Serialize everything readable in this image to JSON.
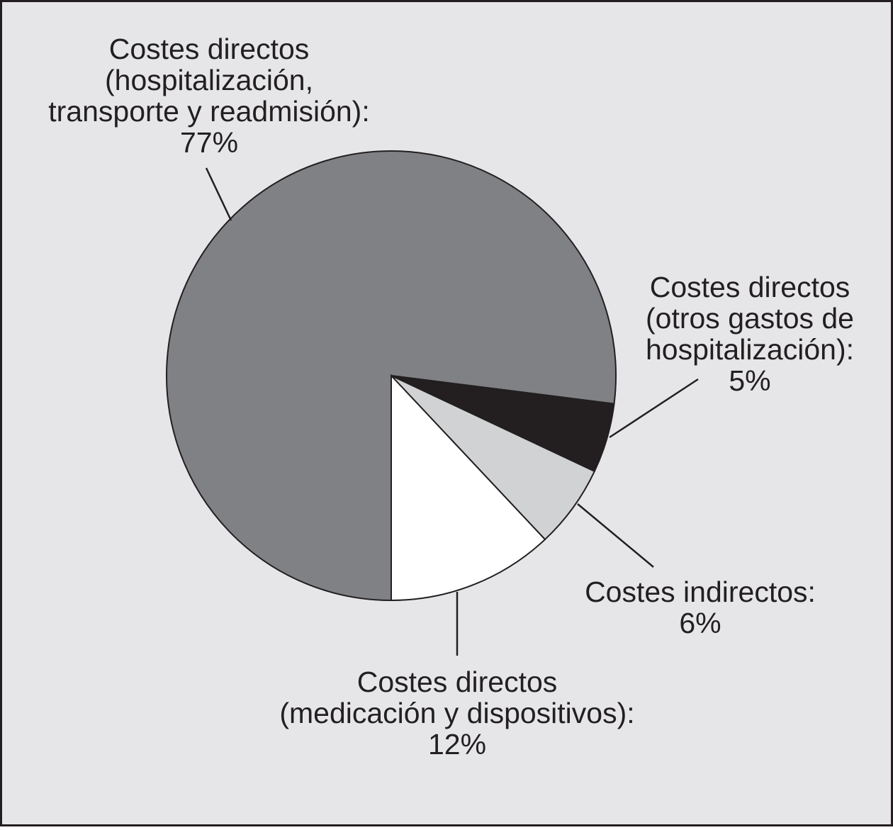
{
  "chart_data": {
    "type": "pie",
    "categories": [
      [
        "Costes directos",
        "(hospitalización,",
        "transporte y readmisión):"
      ],
      [
        "Costes directos",
        "(otros gastos de",
        "hospitalización):"
      ],
      [
        "Costes indirectos:"
      ],
      [
        "Costes directos",
        "(medicación y dispositivos):"
      ]
    ],
    "values": [
      77,
      5,
      6,
      12
    ],
    "value_labels": [
      "77%",
      "5%",
      "6%",
      "12%"
    ],
    "colors": [
      "#808184",
      "#231f20",
      "#d1d2d4",
      "#ffffff"
    ]
  }
}
